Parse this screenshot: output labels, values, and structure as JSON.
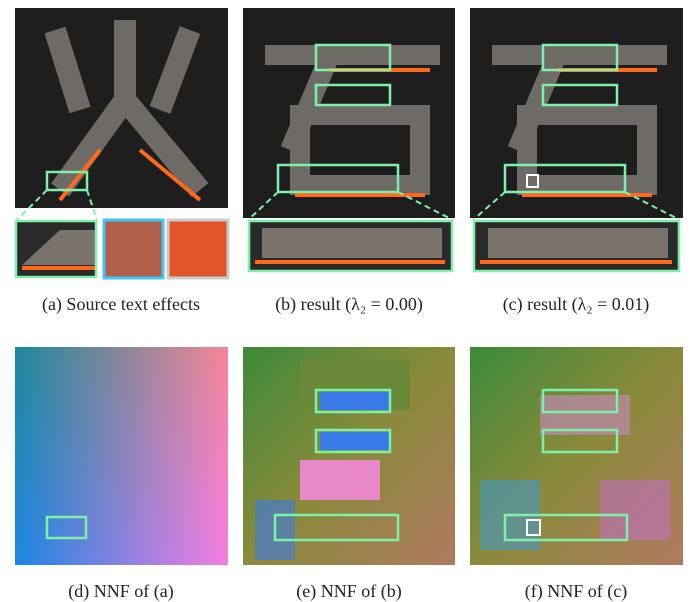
{
  "captions": [
    "(a) Source text effects",
    "(b) result (λ₂ = 0.00)",
    "(c) result (λ₂ = 0.01)",
    "(d) NNF of (a)",
    "(e) NNF of (b)",
    "(f) NNF of (c)"
  ]
}
